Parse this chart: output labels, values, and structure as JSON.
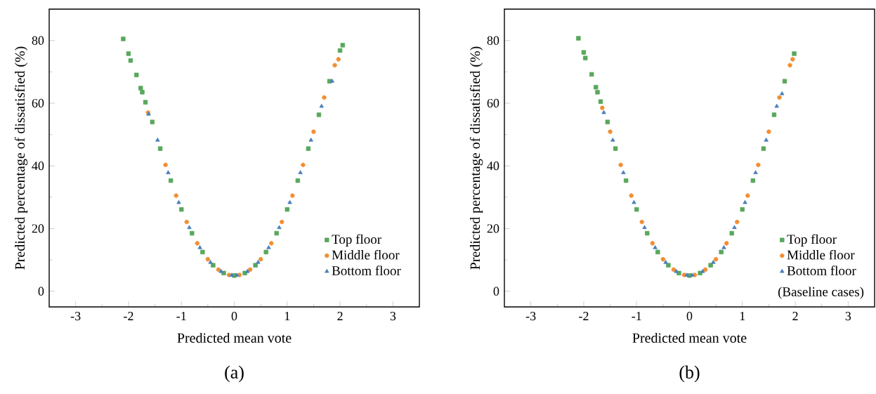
{
  "chart_data": [
    {
      "type": "scatter",
      "xlabel": "Predicted mean vote",
      "ylabel": "Predicted percentage of dissatisfied (%)",
      "xlim": [
        -3.5,
        3.5
      ],
      "ylim": [
        -5,
        90
      ],
      "xticks": [
        -3,
        -2,
        -1,
        0,
        1,
        2,
        3
      ],
      "yticks": [
        0,
        20,
        40,
        60,
        80
      ],
      "legend": "bottom right",
      "annotations": [
        "(a)"
      ],
      "series": [
        {
          "name": "Top floor",
          "color": "#59a85c",
          "marker": "square",
          "x": [
            -2.1,
            -2.0,
            -1.96,
            -1.85,
            -1.77,
            -1.74,
            -1.68,
            -1.55,
            -1.4,
            -1.2,
            -1.0,
            -0.8,
            -0.6,
            -0.4,
            -0.2,
            0,
            0.2,
            0.4,
            0.6,
            0.8,
            1.0,
            1.2,
            1.4,
            1.6,
            1.8,
            2.0,
            2.05
          ],
          "values": [
            80.5,
            75.8,
            73.6,
            69,
            64.8,
            63.5,
            60.3,
            54,
            45.5,
            35.3,
            26.1,
            18.5,
            12.5,
            8.3,
            5.8,
            5,
            5.8,
            8.3,
            12.5,
            18.5,
            26.1,
            35.3,
            45.5,
            56.3,
            67.0,
            76.8,
            78.5
          ]
        },
        {
          "name": "Middle floor",
          "color": "#f28e30",
          "marker": "circle",
          "x": [
            -1.63,
            -1.3,
            -1.1,
            -0.9,
            -0.7,
            -0.5,
            -0.3,
            -0.1,
            0.1,
            0.3,
            0.5,
            0.7,
            0.9,
            1.1,
            1.3,
            1.5,
            1.7,
            1.9,
            1.97
          ],
          "values": [
            57,
            40.3,
            30.5,
            22.1,
            15.3,
            10.2,
            6.9,
            5.2,
            5.2,
            6.9,
            10.2,
            15.3,
            22.1,
            30.5,
            40.3,
            50.9,
            61.8,
            72.1,
            74
          ]
        },
        {
          "name": "Bottom floor",
          "color": "#4a7fbd",
          "marker": "triangle",
          "x": [
            -1.62,
            -1.45,
            -1.25,
            -1.05,
            -0.85,
            -0.65,
            -0.45,
            -0.25,
            -0.05,
            0.05,
            0.25,
            0.45,
            0.65,
            0.85,
            1.05,
            1.25,
            1.45,
            1.65,
            1.85
          ],
          "values": [
            56.5,
            48.2,
            37.8,
            28.3,
            20.3,
            13.9,
            9.2,
            6.3,
            5.1,
            5.1,
            6.3,
            9.2,
            13.9,
            20.3,
            28.3,
            37.8,
            48.2,
            59.0,
            67
          ]
        }
      ]
    },
    {
      "type": "scatter",
      "xlabel": "Predicted mean vote",
      "ylabel": "Predicted percentage of dissatisfied (%)",
      "xlim": [
        -3.5,
        3.5
      ],
      "ylim": [
        -5,
        90
      ],
      "xticks": [
        -3,
        -2,
        -1,
        0,
        1,
        2,
        3
      ],
      "yticks": [
        0,
        20,
        40,
        60,
        80
      ],
      "legend": "bottom right",
      "annotations": [
        "(Baseline cases)",
        "(b)"
      ],
      "series": [
        {
          "name": "Top floor",
          "color": "#59a85c",
          "marker": "square",
          "x": [
            -2.1,
            -2.0,
            -1.97,
            -1.85,
            -1.77,
            -1.74,
            -1.68,
            -1.55,
            -1.4,
            -1.2,
            -1.0,
            -0.8,
            -0.6,
            -0.4,
            -0.2,
            0,
            0.2,
            0.4,
            0.6,
            0.8,
            1.0,
            1.2,
            1.4,
            1.6,
            1.8,
            1.98
          ],
          "values": [
            80.7,
            76.2,
            74.4,
            69.2,
            65.1,
            63.5,
            60.5,
            54,
            45.5,
            35.3,
            26.1,
            18.5,
            12.5,
            8.3,
            5.8,
            5,
            5.8,
            8.3,
            12.5,
            18.5,
            26.1,
            35.3,
            45.5,
            56.3,
            67.0,
            75.8
          ]
        },
        {
          "name": "Middle floor",
          "color": "#f28e30",
          "marker": "circle",
          "x": [
            -1.65,
            -1.5,
            -1.3,
            -1.1,
            -0.9,
            -0.7,
            -0.5,
            -0.3,
            -0.1,
            0.1,
            0.3,
            0.5,
            0.7,
            0.9,
            1.1,
            1.3,
            1.5,
            1.7,
            1.9,
            1.95
          ],
          "values": [
            58.5,
            50.9,
            40.3,
            30.5,
            22.1,
            15.3,
            10.2,
            6.9,
            5.2,
            5.2,
            6.9,
            10.2,
            15.3,
            22.1,
            30.5,
            40.3,
            50.9,
            61.8,
            72.1,
            74
          ]
        },
        {
          "name": "Bottom floor",
          "color": "#4a7fbd",
          "marker": "triangle",
          "x": [
            -1.62,
            -1.45,
            -1.25,
            -1.05,
            -0.85,
            -0.65,
            -0.45,
            -0.25,
            -0.05,
            0.05,
            0.25,
            0.45,
            0.65,
            0.85,
            1.05,
            1.25,
            1.45,
            1.65,
            1.75
          ],
          "values": [
            57,
            48.2,
            37.8,
            28.3,
            20.3,
            13.9,
            9.2,
            6.3,
            5.1,
            5.1,
            6.3,
            9.2,
            13.9,
            20.3,
            28.3,
            37.8,
            48.2,
            59.0,
            63
          ]
        }
      ]
    }
  ]
}
